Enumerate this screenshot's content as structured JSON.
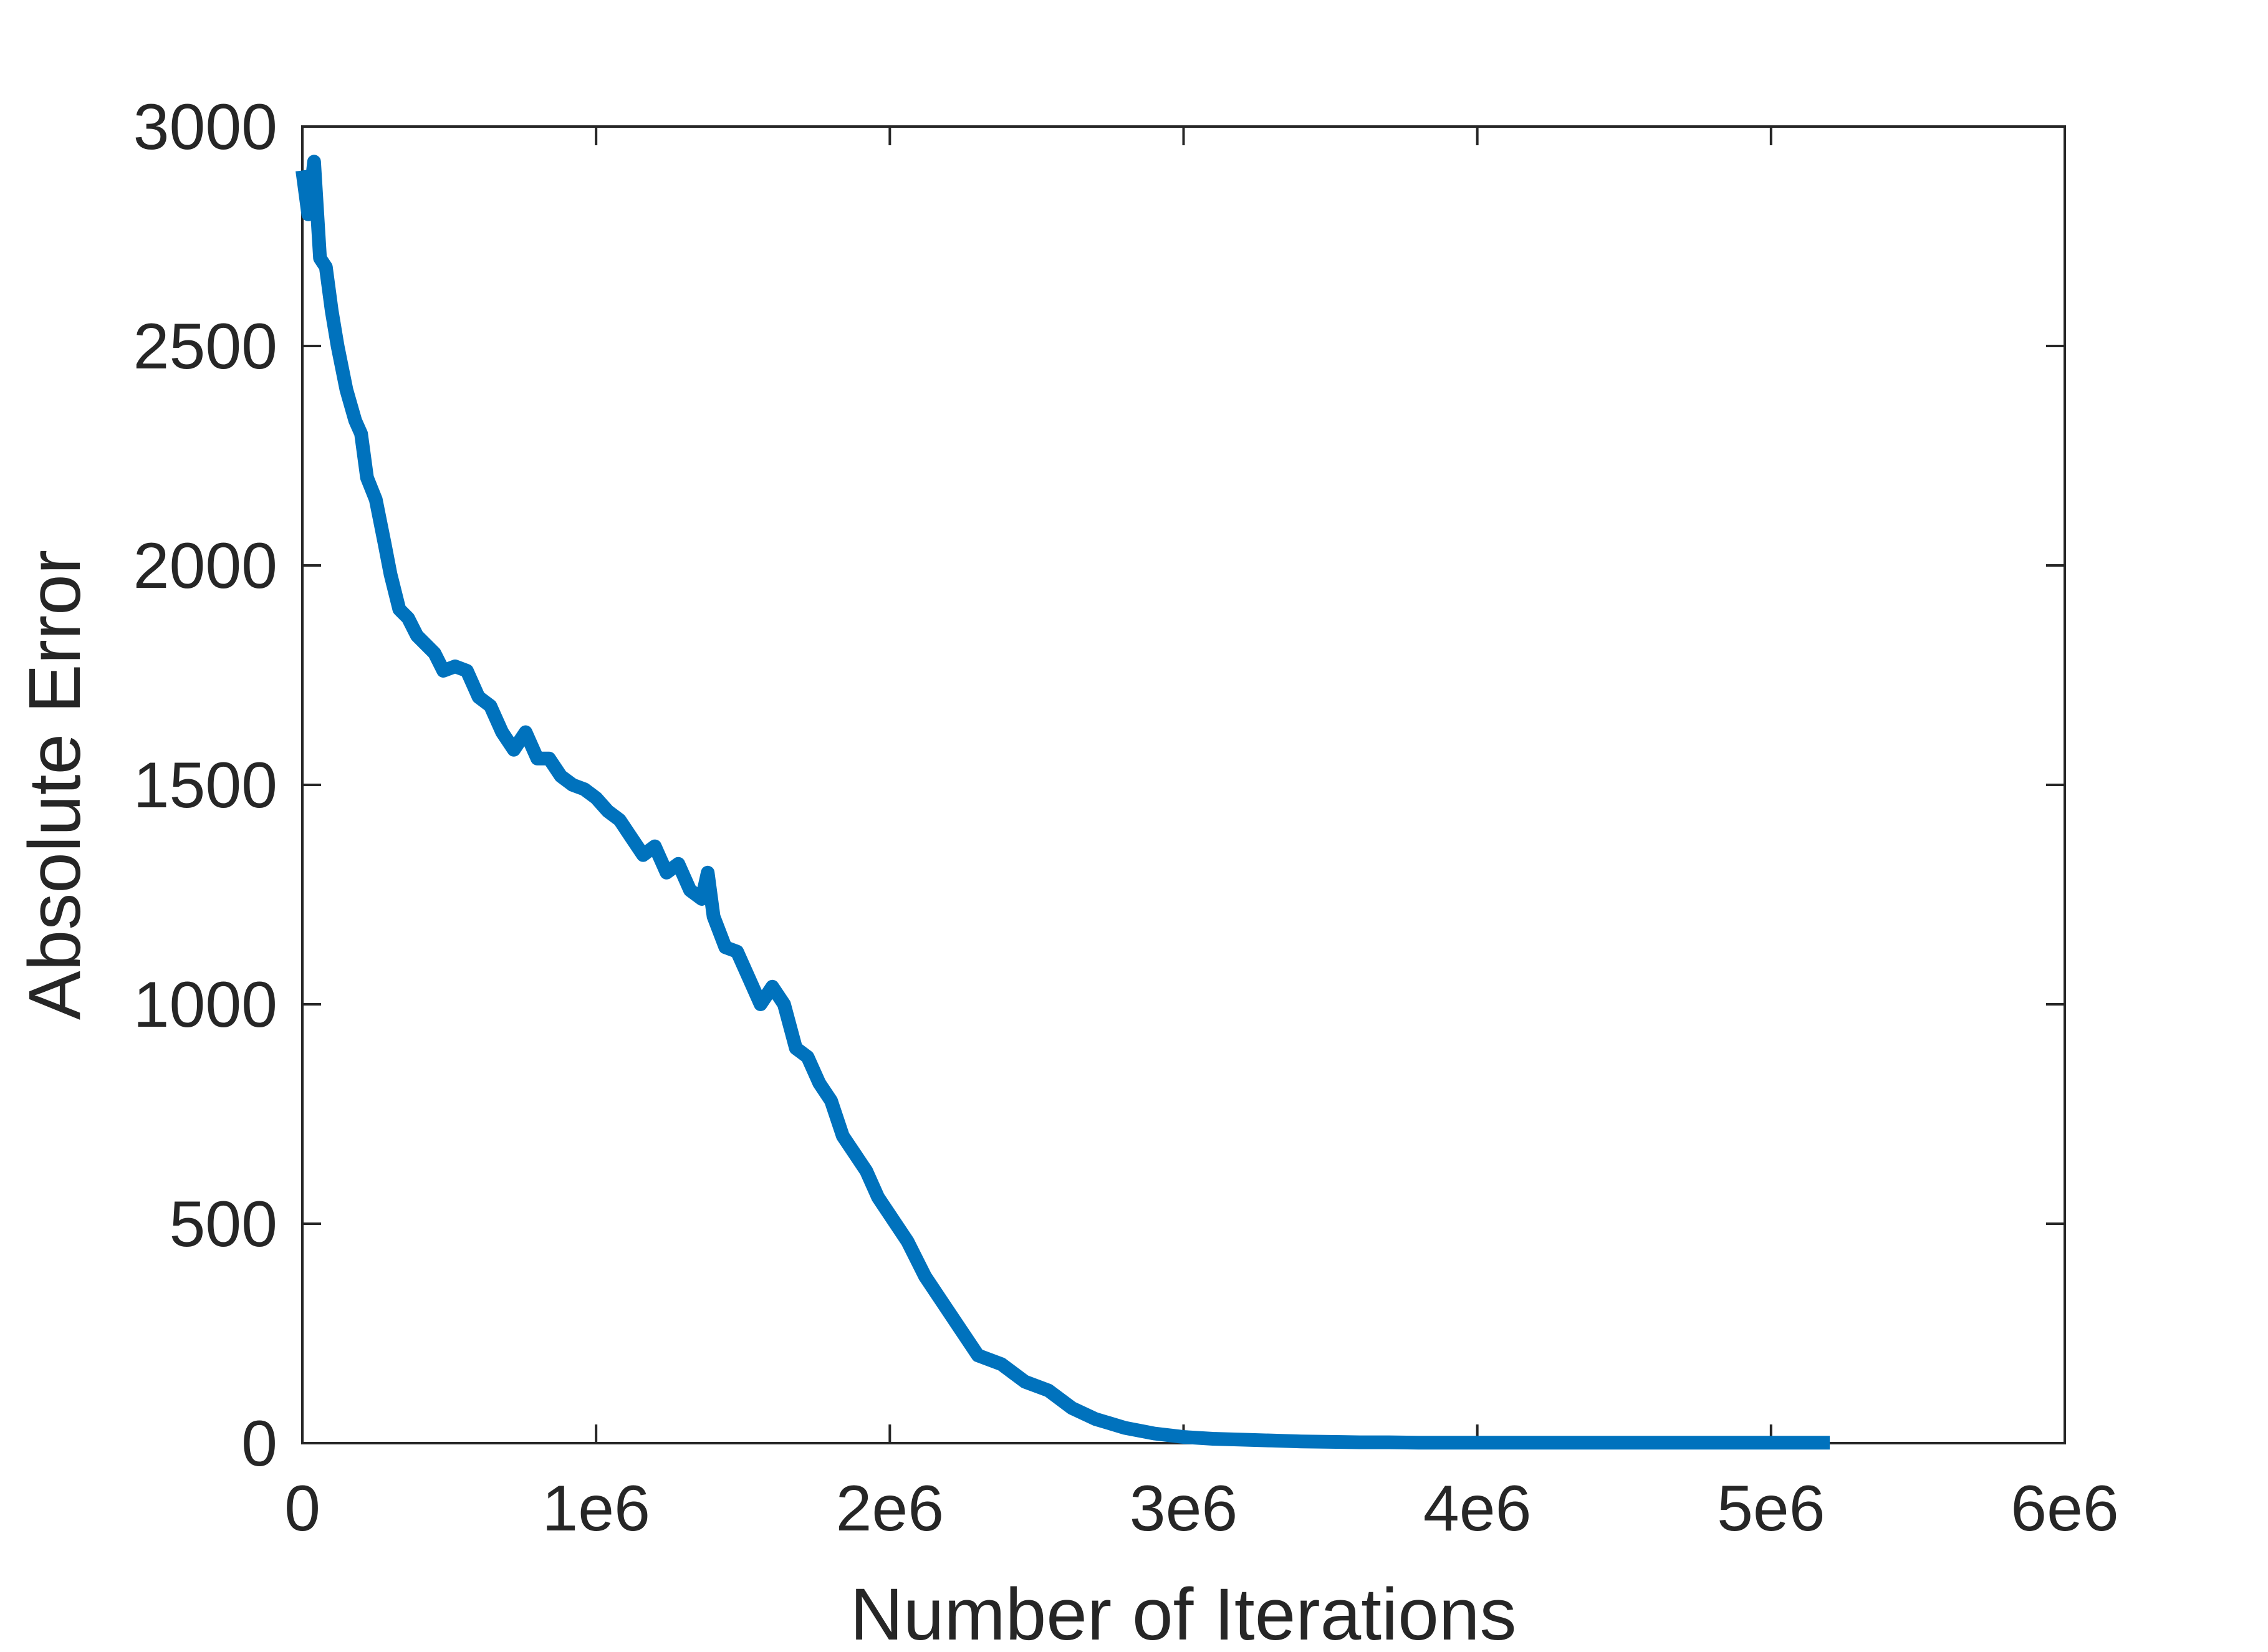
{
  "chart_data": {
    "type": "line",
    "title": "",
    "xlabel": "Number of Iterations",
    "ylabel": "Absolute Error",
    "xlim": [
      0,
      6000000
    ],
    "ylim": [
      0,
      3000
    ],
    "xticks": [
      0,
      1000000,
      2000000,
      3000000,
      4000000,
      5000000,
      6000000
    ],
    "xtick_labels": [
      "0",
      "1e6",
      "2e6",
      "3e6",
      "4e6",
      "5e6",
      "6e6"
    ],
    "yticks": [
      0,
      500,
      1000,
      1500,
      2000,
      2500,
      3000
    ],
    "ytick_labels": [
      "0",
      "500",
      "1000",
      "1500",
      "2000",
      "2500",
      "3000"
    ],
    "grid": false,
    "legend": false,
    "colors": {
      "line": "#0072BD",
      "axis": "#262626"
    },
    "series": [
      {
        "x": [
          0,
          20000,
          40000,
          60000,
          80000,
          100000,
          120000,
          150000,
          180000,
          200000,
          220000,
          250000,
          280000,
          300000,
          330000,
          360000,
          390000,
          420000,
          450000,
          480000,
          520000,
          560000,
          600000,
          640000,
          680000,
          720000,
          760000,
          800000,
          840000,
          880000,
          920000,
          960000,
          1000000,
          1040000,
          1080000,
          1120000,
          1160000,
          1200000,
          1240000,
          1280000,
          1320000,
          1360000,
          1380000,
          1400000,
          1440000,
          1480000,
          1520000,
          1560000,
          1600000,
          1640000,
          1680000,
          1720000,
          1760000,
          1800000,
          1840000,
          1880000,
          1920000,
          1960000,
          2000000,
          2060000,
          2120000,
          2180000,
          2240000,
          2300000,
          2380000,
          2460000,
          2540000,
          2620000,
          2700000,
          2800000,
          2900000,
          3000000,
          3100000,
          3200000,
          3300000,
          3400000,
          3500000,
          3600000,
          3700000,
          3800000,
          3900000,
          4000000,
          4200000,
          4400000,
          4600000,
          4800000,
          5000000,
          5200000
        ],
        "y": [
          2900,
          2800,
          2920,
          2700,
          2680,
          2580,
          2500,
          2400,
          2330,
          2300,
          2200,
          2150,
          2050,
          1980,
          1900,
          1880,
          1840,
          1820,
          1800,
          1760,
          1770,
          1760,
          1700,
          1680,
          1620,
          1580,
          1620,
          1560,
          1560,
          1520,
          1500,
          1490,
          1470,
          1440,
          1420,
          1380,
          1340,
          1360,
          1300,
          1320,
          1260,
          1240,
          1300,
          1200,
          1130,
          1120,
          1060,
          1000,
          1040,
          1000,
          900,
          880,
          820,
          780,
          700,
          660,
          620,
          560,
          520,
          460,
          380,
          320,
          260,
          200,
          180,
          140,
          120,
          80,
          55,
          35,
          22,
          14,
          10,
          8,
          6,
          4,
          3,
          2,
          2,
          1,
          1,
          1,
          1,
          1,
          1,
          1,
          1,
          1
        ]
      }
    ]
  }
}
